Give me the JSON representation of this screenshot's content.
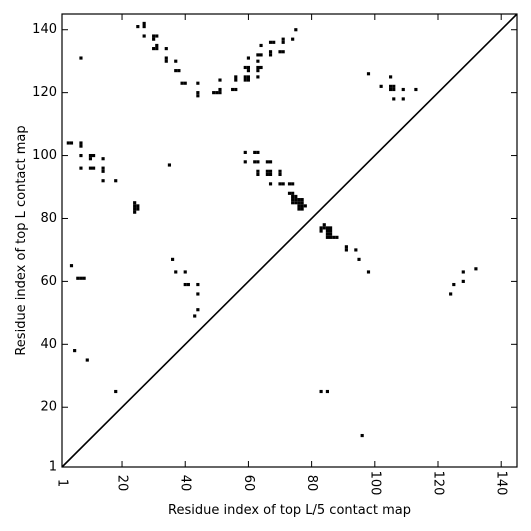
{
  "chart_data": {
    "type": "scatter",
    "title": "",
    "xlabel": "Residue index of top L/5 contact map",
    "ylabel": "Residue index of top L contact map",
    "xlim": [
      1,
      145
    ],
    "ylim": [
      1,
      145
    ],
    "x_ticks": [
      {
        "value": 1,
        "label": "1"
      },
      {
        "value": 20,
        "label": "20"
      },
      {
        "value": 40,
        "label": "40"
      },
      {
        "value": 60,
        "label": "60"
      },
      {
        "value": 80,
        "label": "80"
      },
      {
        "value": 100,
        "label": "100"
      },
      {
        "value": 120,
        "label": "120"
      },
      {
        "value": 140,
        "label": "140"
      }
    ],
    "y_ticks": [
      {
        "value": 1,
        "label": "1"
      },
      {
        "value": 20,
        "label": "20"
      },
      {
        "value": 40,
        "label": "40"
      },
      {
        "value": 60,
        "label": "60"
      },
      {
        "value": 80,
        "label": "80"
      },
      {
        "value": 100,
        "label": "100"
      },
      {
        "value": 120,
        "label": "120"
      },
      {
        "value": 140,
        "label": "140"
      }
    ],
    "diagonal": true,
    "grid": false,
    "marker_color": "#000000",
    "points": [
      [
        25,
        141
      ],
      [
        27,
        142
      ],
      [
        27,
        141
      ],
      [
        27,
        138
      ],
      [
        30,
        138
      ],
      [
        31,
        138
      ],
      [
        30,
        137
      ],
      [
        30,
        134
      ],
      [
        31,
        134
      ],
      [
        31,
        135
      ],
      [
        34,
        134
      ],
      [
        34,
        131
      ],
      [
        34,
        130
      ],
      [
        37,
        130
      ],
      [
        37,
        127
      ],
      [
        38,
        127
      ],
      [
        39,
        123
      ],
      [
        40,
        123
      ],
      [
        44,
        123
      ],
      [
        44,
        120
      ],
      [
        44,
        119
      ],
      [
        49,
        120
      ],
      [
        50,
        120
      ],
      [
        51,
        120
      ],
      [
        51,
        121
      ],
      [
        51,
        124
      ],
      [
        55,
        121
      ],
      [
        56,
        121
      ],
      [
        56,
        124
      ],
      [
        56,
        125
      ],
      [
        59,
        124
      ],
      [
        59,
        125
      ],
      [
        60,
        124
      ],
      [
        60,
        125
      ],
      [
        59,
        128
      ],
      [
        60,
        128
      ],
      [
        60,
        127
      ],
      [
        60,
        131
      ],
      [
        63,
        127
      ],
      [
        63,
        128
      ],
      [
        64,
        128
      ],
      [
        63,
        130
      ],
      [
        64,
        132
      ],
      [
        63,
        132
      ],
      [
        63,
        125
      ],
      [
        64,
        135
      ],
      [
        67,
        133
      ],
      [
        67,
        132
      ],
      [
        67,
        136
      ],
      [
        68,
        136
      ],
      [
        70,
        133
      ],
      [
        71,
        133
      ],
      [
        71,
        136
      ],
      [
        71,
        137
      ],
      [
        74,
        137
      ],
      [
        75,
        140
      ],
      [
        7,
        131
      ],
      [
        3,
        104
      ],
      [
        4,
        104
      ],
      [
        7,
        104
      ],
      [
        7,
        103
      ],
      [
        7,
        100
      ],
      [
        10,
        100
      ],
      [
        11,
        100
      ],
      [
        10,
        99
      ],
      [
        7,
        96
      ],
      [
        10,
        96
      ],
      [
        11,
        96
      ],
      [
        14,
        99
      ],
      [
        14,
        96
      ],
      [
        14,
        95
      ],
      [
        14,
        92
      ],
      [
        18,
        92
      ],
      [
        35,
        97
      ],
      [
        59,
        101
      ],
      [
        59,
        98
      ],
      [
        62,
        101
      ],
      [
        63,
        101
      ],
      [
        62,
        98
      ],
      [
        63,
        98
      ],
      [
        63,
        95
      ],
      [
        63,
        94
      ],
      [
        66,
        98
      ],
      [
        67,
        98
      ],
      [
        66,
        95
      ],
      [
        67,
        95
      ],
      [
        66,
        94
      ],
      [
        67,
        94
      ],
      [
        67,
        91
      ],
      [
        70,
        95
      ],
      [
        70,
        94
      ],
      [
        70,
        91
      ],
      [
        71,
        91
      ],
      [
        73,
        91
      ],
      [
        74,
        91
      ],
      [
        73,
        88
      ],
      [
        74,
        88
      ],
      [
        74,
        87
      ],
      [
        75,
        87
      ],
      [
        74,
        86
      ],
      [
        75,
        86
      ],
      [
        76,
        86
      ],
      [
        77,
        86
      ],
      [
        74,
        85
      ],
      [
        75,
        85
      ],
      [
        76,
        85
      ],
      [
        77,
        85
      ],
      [
        76,
        84
      ],
      [
        77,
        84
      ],
      [
        78,
        84
      ],
      [
        76,
        83
      ],
      [
        77,
        83
      ],
      [
        24,
        85
      ],
      [
        24,
        84
      ],
      [
        25,
        84
      ],
      [
        24,
        83
      ],
      [
        25,
        83
      ],
      [
        24,
        82
      ],
      [
        83,
        77
      ],
      [
        84,
        77
      ],
      [
        85,
        77
      ],
      [
        86,
        77
      ],
      [
        84,
        78
      ],
      [
        85,
        76
      ],
      [
        86,
        76
      ],
      [
        85,
        75
      ],
      [
        86,
        75
      ],
      [
        85,
        74
      ],
      [
        86,
        74
      ],
      [
        87,
        74
      ],
      [
        88,
        74
      ],
      [
        83,
        76
      ],
      [
        91,
        71
      ],
      [
        91,
        70
      ],
      [
        94,
        70
      ],
      [
        95,
        67
      ],
      [
        98,
        63
      ],
      [
        98,
        126
      ],
      [
        102,
        122
      ],
      [
        105,
        125
      ],
      [
        105,
        122
      ],
      [
        106,
        122
      ],
      [
        105,
        121
      ],
      [
        106,
        121
      ],
      [
        109,
        121
      ],
      [
        113,
        121
      ],
      [
        106,
        118
      ],
      [
        109,
        118
      ],
      [
        4,
        65
      ],
      [
        6,
        61
      ],
      [
        7,
        61
      ],
      [
        8,
        61
      ],
      [
        36,
        67
      ],
      [
        37,
        63
      ],
      [
        40,
        63
      ],
      [
        40,
        59
      ],
      [
        41,
        59
      ],
      [
        44,
        59
      ],
      [
        44,
        56
      ],
      [
        44,
        51
      ],
      [
        43,
        49
      ],
      [
        5,
        38
      ],
      [
        9,
        35
      ],
      [
        18,
        25
      ],
      [
        83,
        25
      ],
      [
        85,
        25
      ],
      [
        96,
        11
      ],
      [
        124,
        56
      ],
      [
        125,
        59
      ],
      [
        128,
        60
      ],
      [
        128,
        63
      ],
      [
        132,
        64
      ]
    ]
  }
}
